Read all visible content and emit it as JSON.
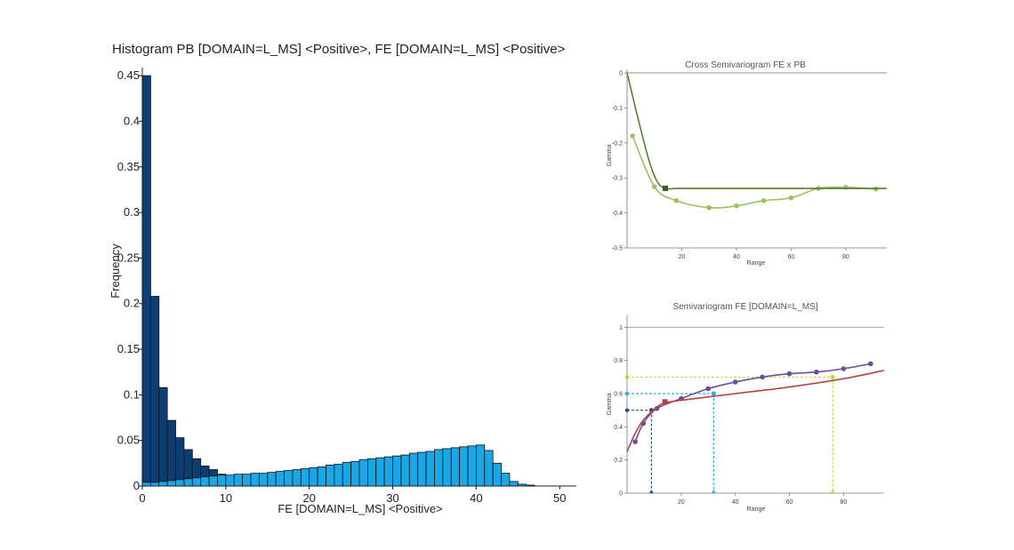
{
  "chart_data": [
    {
      "type": "bar",
      "title": "Histogram PB [DOMAIN=L_MS] <Positive>, FE [DOMAIN=L_MS] <Positive>",
      "xlabel": "FE [DOMAIN=L_MS] <Positive>",
      "ylabel": "Frequency",
      "xlim": [
        0,
        52
      ],
      "ylim": [
        0,
        0.455
      ],
      "xticks": [
        "0",
        "10",
        "20",
        "30",
        "40",
        "50"
      ],
      "yticks": [
        "0",
        "0.05",
        "0.1",
        "0.15",
        "0.2",
        "0.25",
        "0.3",
        "0.35",
        "0.4",
        "0.45"
      ],
      "bin_width": 1,
      "series": [
        {
          "color": "#0b3f73",
          "bin_start": 0,
          "values": [
            0.45,
            0.208,
            0.108,
            0.072,
            0.053,
            0.04,
            0.03,
            0.022,
            0.018,
            0.013,
            0.01,
            0.008,
            0.007,
            0.006,
            0.005,
            0.004,
            0.004,
            0.003,
            0.003,
            0.002,
            0.002
          ]
        },
        {
          "color": "#1aa7e6",
          "bin_start": 0,
          "values": [
            0.004,
            0.004,
            0.005,
            0.006,
            0.007,
            0.008,
            0.009,
            0.01,
            0.011,
            0.012,
            0.012,
            0.013,
            0.013,
            0.014,
            0.014,
            0.015,
            0.016,
            0.017,
            0.018,
            0.019,
            0.02,
            0.021,
            0.023,
            0.024,
            0.026,
            0.027,
            0.029,
            0.03,
            0.031,
            0.032,
            0.033,
            0.034,
            0.036,
            0.037,
            0.038,
            0.04,
            0.041,
            0.042,
            0.043,
            0.044,
            0.045,
            0.039,
            0.025,
            0.014,
            0.005,
            0.002,
            0.001
          ]
        }
      ]
    },
    {
      "type": "line",
      "title": "Cross Semivariogram FE x PB",
      "xlabel": "Range",
      "ylabel": "Gamma",
      "xlim": [
        0,
        95
      ],
      "ylim": [
        -0.5,
        0
      ],
      "xticks": [
        "20",
        "40",
        "60",
        "80"
      ],
      "yticks": [
        "0",
        "-0.1",
        "-0.2",
        "-0.3",
        "-0.4",
        "-0.5"
      ],
      "series": [
        {
          "color": "#9bc25b",
          "x": [
            2,
            10,
            18,
            30,
            40,
            50,
            60,
            70,
            80,
            91
          ],
          "y": [
            -0.18,
            -0.325,
            -0.365,
            -0.385,
            -0.38,
            -0.365,
            -0.357,
            -0.33,
            -0.327,
            -0.332
          ]
        },
        {
          "color": "#5a7d32",
          "x": [
            0,
            4,
            8,
            11,
            14,
            20,
            40,
            60,
            80,
            95
          ],
          "y": [
            0,
            -0.13,
            -0.25,
            -0.31,
            -0.33,
            -0.33,
            -0.33,
            -0.33,
            -0.33,
            -0.33
          ]
        }
      ],
      "reference_lines": [
        {
          "y": 0,
          "color": "#aaaaaa"
        }
      ],
      "markers": [
        {
          "x": 14,
          "y": -0.33,
          "shape": "square",
          "color": "#3d5e22"
        }
      ]
    },
    {
      "type": "line",
      "title": "Semivariogram FE [DOMAIN=L_MS]",
      "xlabel": "Range",
      "ylabel": "Gamma",
      "xlim": [
        0,
        95
      ],
      "ylim": [
        0,
        1.05
      ],
      "xticks": [
        "20",
        "40",
        "60",
        "80"
      ],
      "yticks": [
        "0",
        "0.2",
        "0.4",
        "0.6",
        "0.8",
        "1"
      ],
      "series": [
        {
          "color": "#6b4f9e",
          "x": [
            3,
            6,
            11,
            20,
            30,
            40,
            50,
            60,
            70,
            80,
            90
          ],
          "y": [
            0.31,
            0.42,
            0.51,
            0.57,
            0.63,
            0.67,
            0.7,
            0.72,
            0.73,
            0.75,
            0.78
          ]
        },
        {
          "color": "#b04545",
          "x": [
            0,
            3,
            6,
            9,
            12,
            14,
            16,
            20,
            40,
            60,
            80,
            95
          ],
          "y": [
            0.25,
            0.36,
            0.44,
            0.49,
            0.53,
            0.545,
            0.55,
            0.56,
            0.6,
            0.64,
            0.69,
            0.74
          ]
        }
      ],
      "reference_lines": [
        {
          "y": 1,
          "color": "#aaaaaa"
        }
      ],
      "guides": [
        {
          "x": 9,
          "y": 0.5,
          "color": "#2a4d80"
        },
        {
          "x": 32,
          "y": 0.6,
          "color": "#2ab0e5"
        },
        {
          "x": 76,
          "y": 0.7,
          "color": "#c6d236"
        }
      ],
      "markers": [
        {
          "x": 14,
          "y": 0.55,
          "shape": "square",
          "color": "#b04545"
        }
      ]
    }
  ]
}
